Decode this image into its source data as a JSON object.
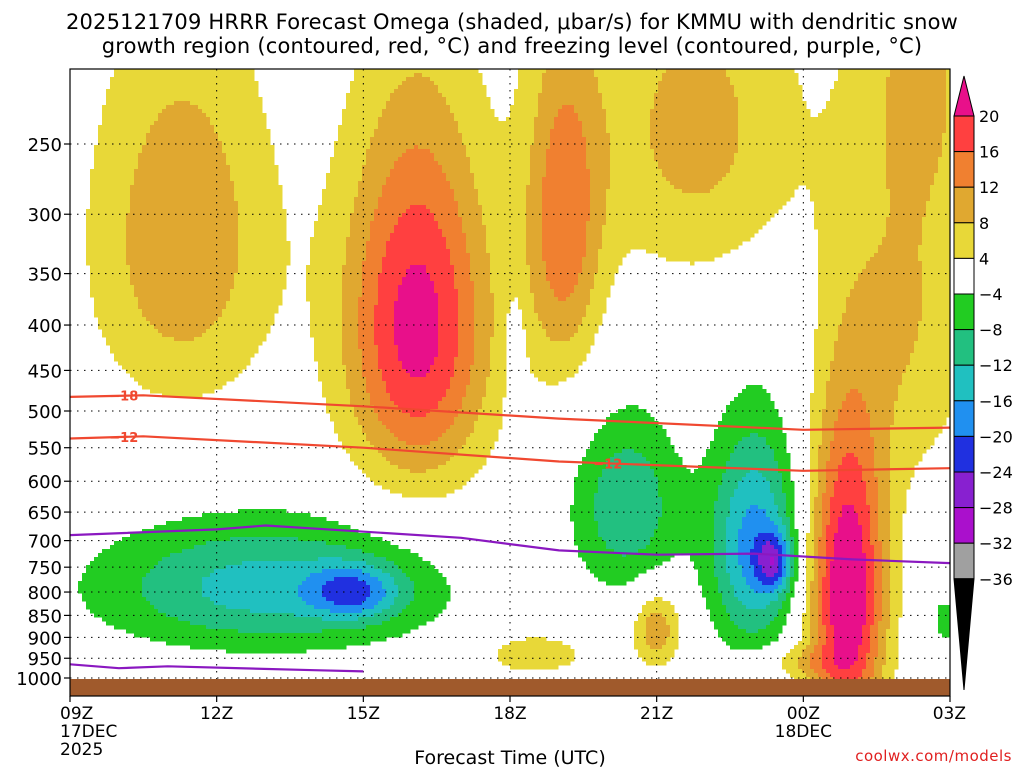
{
  "title_line1": "2025121709 HRRR Forecast Omega (shaded, μbar/s) for KMMU with dendritic snow",
  "title_line2": "growth region (contoured, red, °C) and freezing level (contoured, purple, °C)",
  "xlabel": "Forecast Time (UTC)",
  "credit": "coolwx.com/models",
  "chart_data": {
    "type": "contour",
    "x_range_hours": [
      0,
      18
    ],
    "x_ticks": [
      {
        "h": 0,
        "label": "09Z",
        "sub": [
          "17DEC",
          "2025"
        ]
      },
      {
        "h": 3,
        "label": "12Z",
        "sub": []
      },
      {
        "h": 6,
        "label": "15Z",
        "sub": []
      },
      {
        "h": 9,
        "label": "18Z",
        "sub": []
      },
      {
        "h": 12,
        "label": "21Z",
        "sub": []
      },
      {
        "h": 15,
        "label": "00Z",
        "sub": [
          "18DEC"
        ]
      },
      {
        "h": 18,
        "label": "03Z",
        "sub": []
      }
    ],
    "y_ticks_hPa": [
      250,
      300,
      350,
      400,
      450,
      500,
      550,
      600,
      650,
      700,
      750,
      800,
      850,
      900,
      950,
      1000
    ],
    "colorbar": {
      "labels": [
        "20",
        "16",
        "12",
        "8",
        "4",
        "−4",
        "−8",
        "−12",
        "−16",
        "−20",
        "−24",
        "−28",
        "−32",
        "−36"
      ],
      "colors": [
        "#ff4040",
        "#f08030",
        "#e0a830",
        "#e8d838",
        "#ffffff",
        "#22cc22",
        "#22c080",
        "#20c0c0",
        "#2090f0",
        "#2030e0",
        "#8820d0",
        "#aa10cc",
        "#a0a0a0"
      ],
      "top_cap": "#e8108a",
      "bottom_cap": "#000000"
    },
    "contour_labels": [
      "−18",
      "−12",
      "−12"
    ],
    "omega_fields": [
      {
        "name": "updraft-blob-early",
        "t": 2.3,
        "p": 320,
        "th": 1.9,
        "tp": 160,
        "peak": 11.5
      },
      {
        "name": "updraft-blob-15z",
        "t": 7.1,
        "p": 400,
        "th": 1.5,
        "tp": 190,
        "peak": 22
      },
      {
        "name": "updraft-blob-19z",
        "t": 10.1,
        "p": 310,
        "th": 0.8,
        "tp": 140,
        "peak": 14
      },
      {
        "name": "updraft-blob-21z-upper",
        "t": 12.8,
        "p": 240,
        "th": 2.2,
        "tp": 110,
        "peak": 9.5
      },
      {
        "name": "updraft-blob-01z",
        "t": 15.9,
        "p": 800,
        "th": 0.8,
        "tp": 330,
        "peak": 25
      },
      {
        "name": "updraft-blob-18z-low",
        "t": 9.5,
        "p": 940,
        "th": 1.0,
        "tp": 50,
        "peak": 8
      },
      {
        "name": "updraft-blob-21z-low",
        "t": 12.0,
        "p": 880,
        "th": 0.5,
        "tp": 90,
        "peak": 11
      },
      {
        "name": "updraft-blob-00z-low",
        "t": 14.8,
        "p": 960,
        "th": 0.9,
        "tp": 40,
        "peak": 6
      },
      {
        "name": "updraft-blob-02z",
        "t": 17.2,
        "p": 380,
        "th": 1.3,
        "tp": 210,
        "peak": 8
      },
      {
        "name": "updraft-blob-03z-upper",
        "t": 17.5,
        "p": 200,
        "th": 1.1,
        "tp": 80,
        "peak": 6
      },
      {
        "name": "downdraft-blob-13z",
        "t": 4.0,
        "p": 790,
        "th": 3.4,
        "tp": 130,
        "peak": -14
      },
      {
        "name": "downdraft-blob-15z",
        "t": 5.8,
        "p": 800,
        "th": 0.9,
        "tp": 55,
        "peak": -13
      },
      {
        "name": "downdraft-blob-20z",
        "t": 11.4,
        "p": 640,
        "th": 1.1,
        "tp": 145,
        "peak": -11.5
      },
      {
        "name": "downdraft-blob-23z",
        "t": 14.0,
        "p": 710,
        "th": 0.9,
        "tp": 200,
        "peak": -18
      },
      {
        "name": "downdraft-blob-2330z",
        "t": 14.4,
        "p": 740,
        "th": 0.35,
        "tp": 55,
        "peak": -14
      },
      {
        "name": "downdraft-blob-03z",
        "t": 17.9,
        "p": 860,
        "th": 0.3,
        "tp": 60,
        "peak": -6
      },
      {
        "name": "downdraft-blob-1830z",
        "t": 9.1,
        "p": 430,
        "th": 0.2,
        "tp": 60,
        "peak": -5.5
      }
    ],
    "dgz_isotherm_minus18_hPa": [
      [
        0.0,
        482
      ],
      [
        1.5,
        480
      ],
      [
        6.0,
        494
      ],
      [
        10.0,
        510
      ],
      [
        15.0,
        525
      ],
      [
        18.0,
        522
      ]
    ],
    "dgz_isotherm_minus12_hPa": [
      [
        0.0,
        537
      ],
      [
        1.5,
        534
      ],
      [
        6.0,
        550
      ],
      [
        10.0,
        570
      ],
      [
        15.0,
        584
      ],
      [
        18.0,
        580
      ]
    ],
    "freezing_level_upper_hPa": [
      [
        0.0,
        690
      ],
      [
        3.0,
        680
      ],
      [
        4.0,
        673
      ],
      [
        8.0,
        695
      ],
      [
        10.0,
        718
      ],
      [
        12.0,
        726
      ],
      [
        14.0,
        724
      ],
      [
        16.0,
        735
      ],
      [
        18.0,
        742
      ]
    ],
    "freezing_level_lower_hPa": [
      [
        0.0,
        965
      ],
      [
        1.0,
        975
      ],
      [
        2.0,
        970
      ],
      [
        5.0,
        980
      ],
      [
        6.0,
        983
      ]
    ]
  }
}
